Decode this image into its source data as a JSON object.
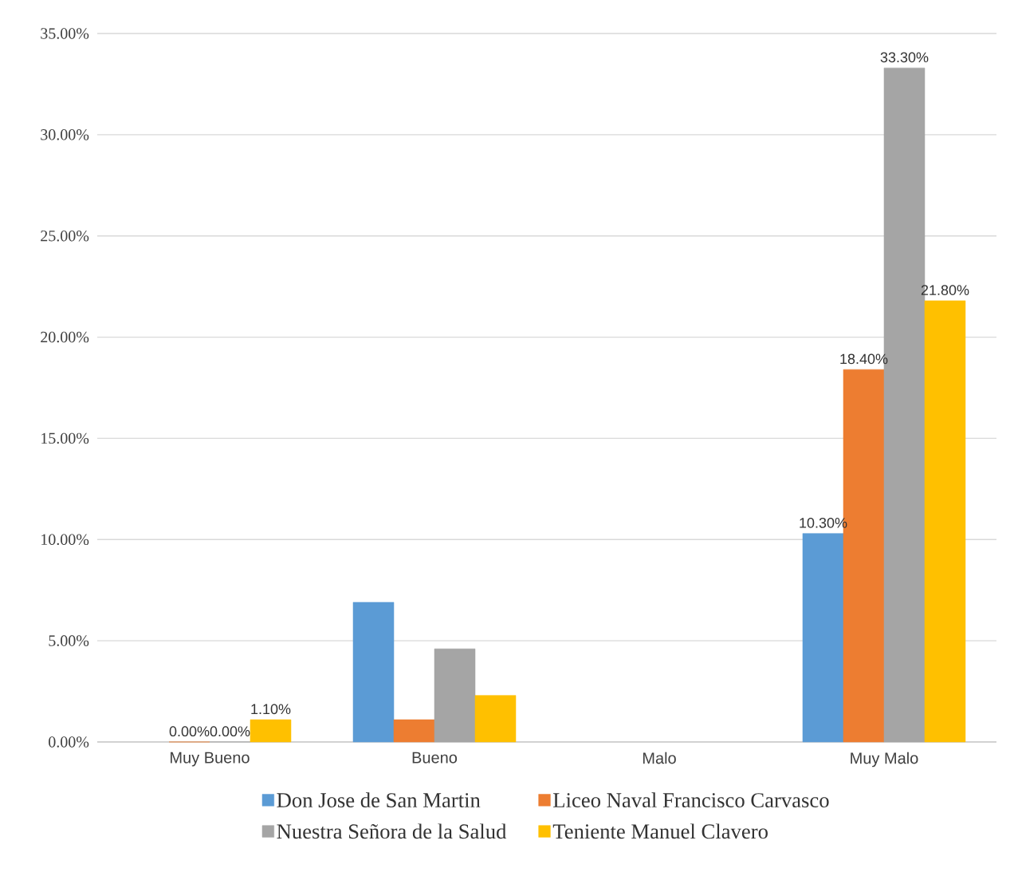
{
  "chart_data": {
    "type": "bar",
    "categories": [
      "Muy Bueno",
      "Bueno",
      "Malo",
      "Muy Malo"
    ],
    "series": [
      {
        "name": "Don Jose de San Martin",
        "color": "#5b9bd5",
        "values": [
          null,
          6.9,
          null,
          10.3
        ],
        "value_labels": [
          null,
          null,
          null,
          "10.30%"
        ]
      },
      {
        "name": "Liceo Naval Francisco Carvasco",
        "color": "#ed7d31",
        "values": [
          0,
          1.1,
          null,
          18.4
        ],
        "value_labels": [
          "0.00%",
          null,
          null,
          "18.40%"
        ]
      },
      {
        "name": "Nuestra Señora de la Salud",
        "color": "#a5a5a5",
        "values": [
          0,
          4.6,
          null,
          33.3
        ],
        "value_labels": [
          "0.00%",
          null,
          null,
          "33.30%"
        ]
      },
      {
        "name": "Teniente Manuel Clavero",
        "color": "#ffc000",
        "values": [
          1.1,
          2.3,
          null,
          21.8
        ],
        "value_labels": [
          "1.10%",
          null,
          null,
          "21.80%"
        ]
      }
    ],
    "ylim": [
      0,
      35
    ],
    "yticks": [
      {
        "value": 0,
        "label": "0.00%"
      },
      {
        "value": 5,
        "label": "5.00%"
      },
      {
        "value": 10,
        "label": "10.00%"
      },
      {
        "value": 15,
        "label": "15.00%"
      },
      {
        "value": 20,
        "label": "20.00%"
      },
      {
        "value": 25,
        "label": "25.00%"
      },
      {
        "value": 30,
        "label": "30.00%"
      },
      {
        "value": 35,
        "label": "35.00%"
      }
    ],
    "grid": "y",
    "legend": "bottom"
  }
}
